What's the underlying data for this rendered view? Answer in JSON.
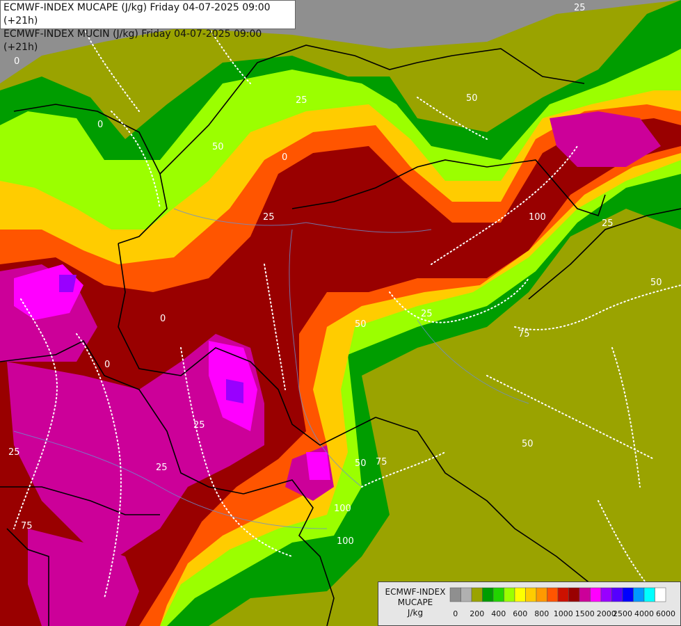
{
  "header": {
    "line1": "ECMWF-INDEX MUCAPE (J/kg) Friday 04-07-2025 09:00 (+21h)",
    "line2": "ECMWF-INDEX MUCIN (J/kg) Friday 04-07-2025 09:00 (+21h)"
  },
  "legend": {
    "title_line1": "ECMWF-INDEX",
    "title_line2": "MUCAPE",
    "title_line3": "J/kg",
    "tick_labels": [
      "0",
      "200",
      "400",
      "600",
      "800",
      "1000",
      "1500",
      "2000",
      "2500",
      "4000",
      "6000"
    ],
    "colors": [
      "#8f8f8f",
      "#b0b0b0",
      "#9aa300",
      "#009d00",
      "#22d400",
      "#9bff00",
      "#ffff00",
      "#ffcc00",
      "#ff9900",
      "#ff5500",
      "#cc1100",
      "#990000",
      "#cc0099",
      "#ff00ff",
      "#9900ff",
      "#5500ff",
      "#0000ff",
      "#0099ff",
      "#00ffff",
      "#ffffff"
    ]
  },
  "contour_labels": [
    "0",
    "25",
    "50",
    "75",
    "100"
  ],
  "colors": {
    "background": "#8f8f8f",
    "borders": "#000000",
    "rivers": "#6b8fd0",
    "cin_contours": "#ffffff"
  }
}
